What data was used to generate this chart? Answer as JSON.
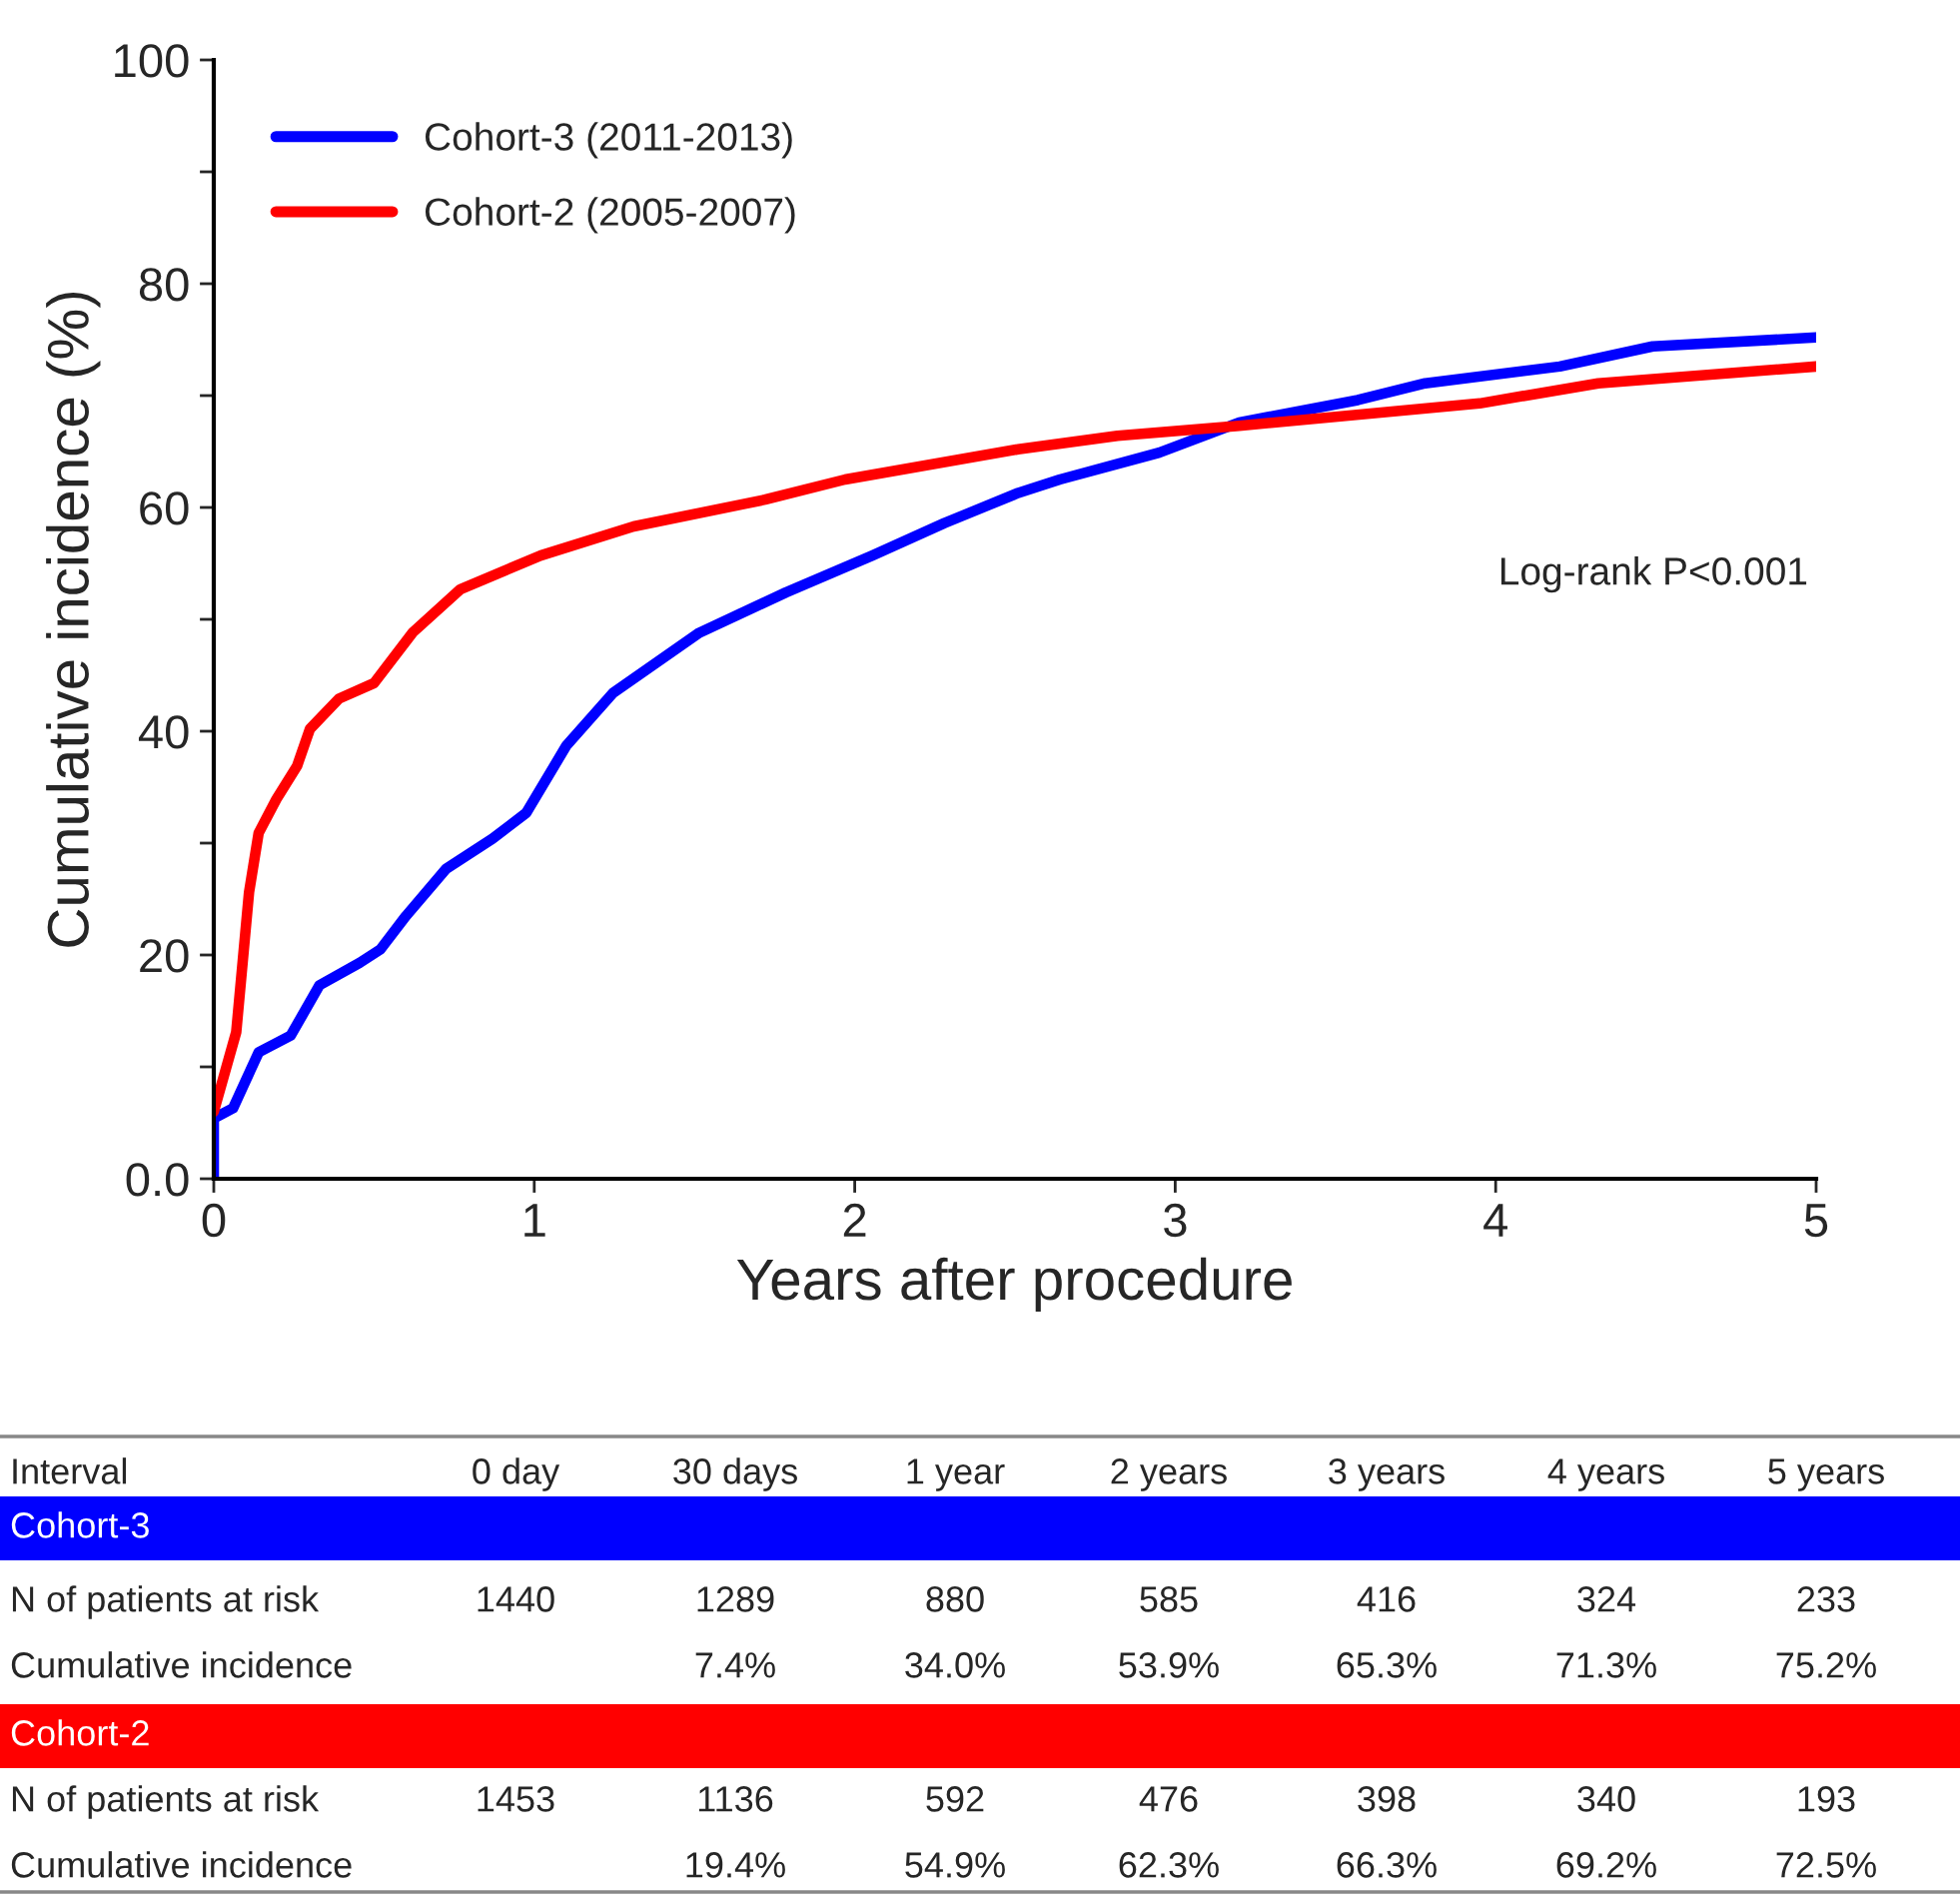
{
  "chart_data": {
    "type": "line",
    "xlabel": "Years after procedure",
    "ylabel": "Cumulative incidence (%)",
    "xlim": [
      0,
      5
    ],
    "xticks": [
      0,
      1,
      2,
      3,
      4,
      5
    ],
    "ylim": [
      0,
      100
    ],
    "yticks": [
      {
        "value": 0,
        "label": "0.0"
      },
      {
        "value": 10,
        "label": null
      },
      20,
      {
        "value": 30,
        "label": null
      },
      40,
      {
        "value": 50,
        "label": null
      },
      60,
      {
        "value": 70,
        "label": null
      },
      80,
      {
        "value": 90,
        "label": null
      },
      100
    ],
    "grid": false,
    "legend": "top left",
    "line_style": "solid",
    "marker": "none",
    "series": [
      {
        "name": "Cohort-3 (2011-2013)",
        "color": "#0000ff",
        "x": [
          0,
          0,
          0.06,
          0.14,
          0.24,
          0.33,
          0.455,
          0.52,
          0.6,
          0.725,
          0.87,
          0.975,
          1.1,
          1.245,
          1.515,
          1.785,
          2.055,
          2.28,
          2.51,
          2.64,
          2.95,
          3.2,
          3.57,
          3.78,
          4.2,
          4.49,
          5.0
        ],
        "values": [
          0,
          5.4,
          6.3,
          11.3,
          12.8,
          17.3,
          19.3,
          20.5,
          23.5,
          27.7,
          30.4,
          32.7,
          38.7,
          43.4,
          48.8,
          52.4,
          55.7,
          58.6,
          61.3,
          62.5,
          64.9,
          67.6,
          69.6,
          71.1,
          72.6,
          74.4,
          75.2
        ]
      },
      {
        "name": "Cohort-2 (2005-2007)",
        "color": "#ff0000",
        "x": [
          0,
          0.07,
          0.11,
          0.14,
          0.195,
          0.26,
          0.3,
          0.39,
          0.5,
          0.62,
          0.77,
          1.02,
          1.31,
          1.72,
          1.97,
          2.51,
          2.82,
          3.2,
          3.95,
          4.32,
          5.0
        ],
        "values": [
          6.0,
          13.1,
          25.6,
          30.9,
          33.9,
          36.9,
          40.2,
          42.9,
          44.3,
          48.8,
          52.7,
          55.7,
          58.3,
          60.7,
          62.5,
          65.2,
          66.4,
          67.3,
          69.3,
          71.1,
          72.6
        ]
      }
    ],
    "annotations": [
      "Log-rank P<0.001",
      "Interval",
      "0 day",
      "30 days",
      "1 year",
      "2 years",
      "3 years",
      "4 years",
      "5 years",
      "Cohort-3",
      "N of patients at risk",
      "1440",
      "1289",
      "880",
      "585",
      "416",
      "324",
      "233",
      "Cumulative incidence",
      "7.4%",
      "34.0%",
      "53.9%",
      "65.3%",
      "71.3%",
      "75.2%",
      "Cohort-2",
      "N of patients at risk",
      "1453",
      "1136",
      "592",
      "476",
      "398",
      "340",
      "193",
      "Cumulative incidence",
      "19.4%",
      "54.9%",
      "62.3%",
      "66.3%",
      "69.2%",
      "72.5%"
    ]
  }
}
